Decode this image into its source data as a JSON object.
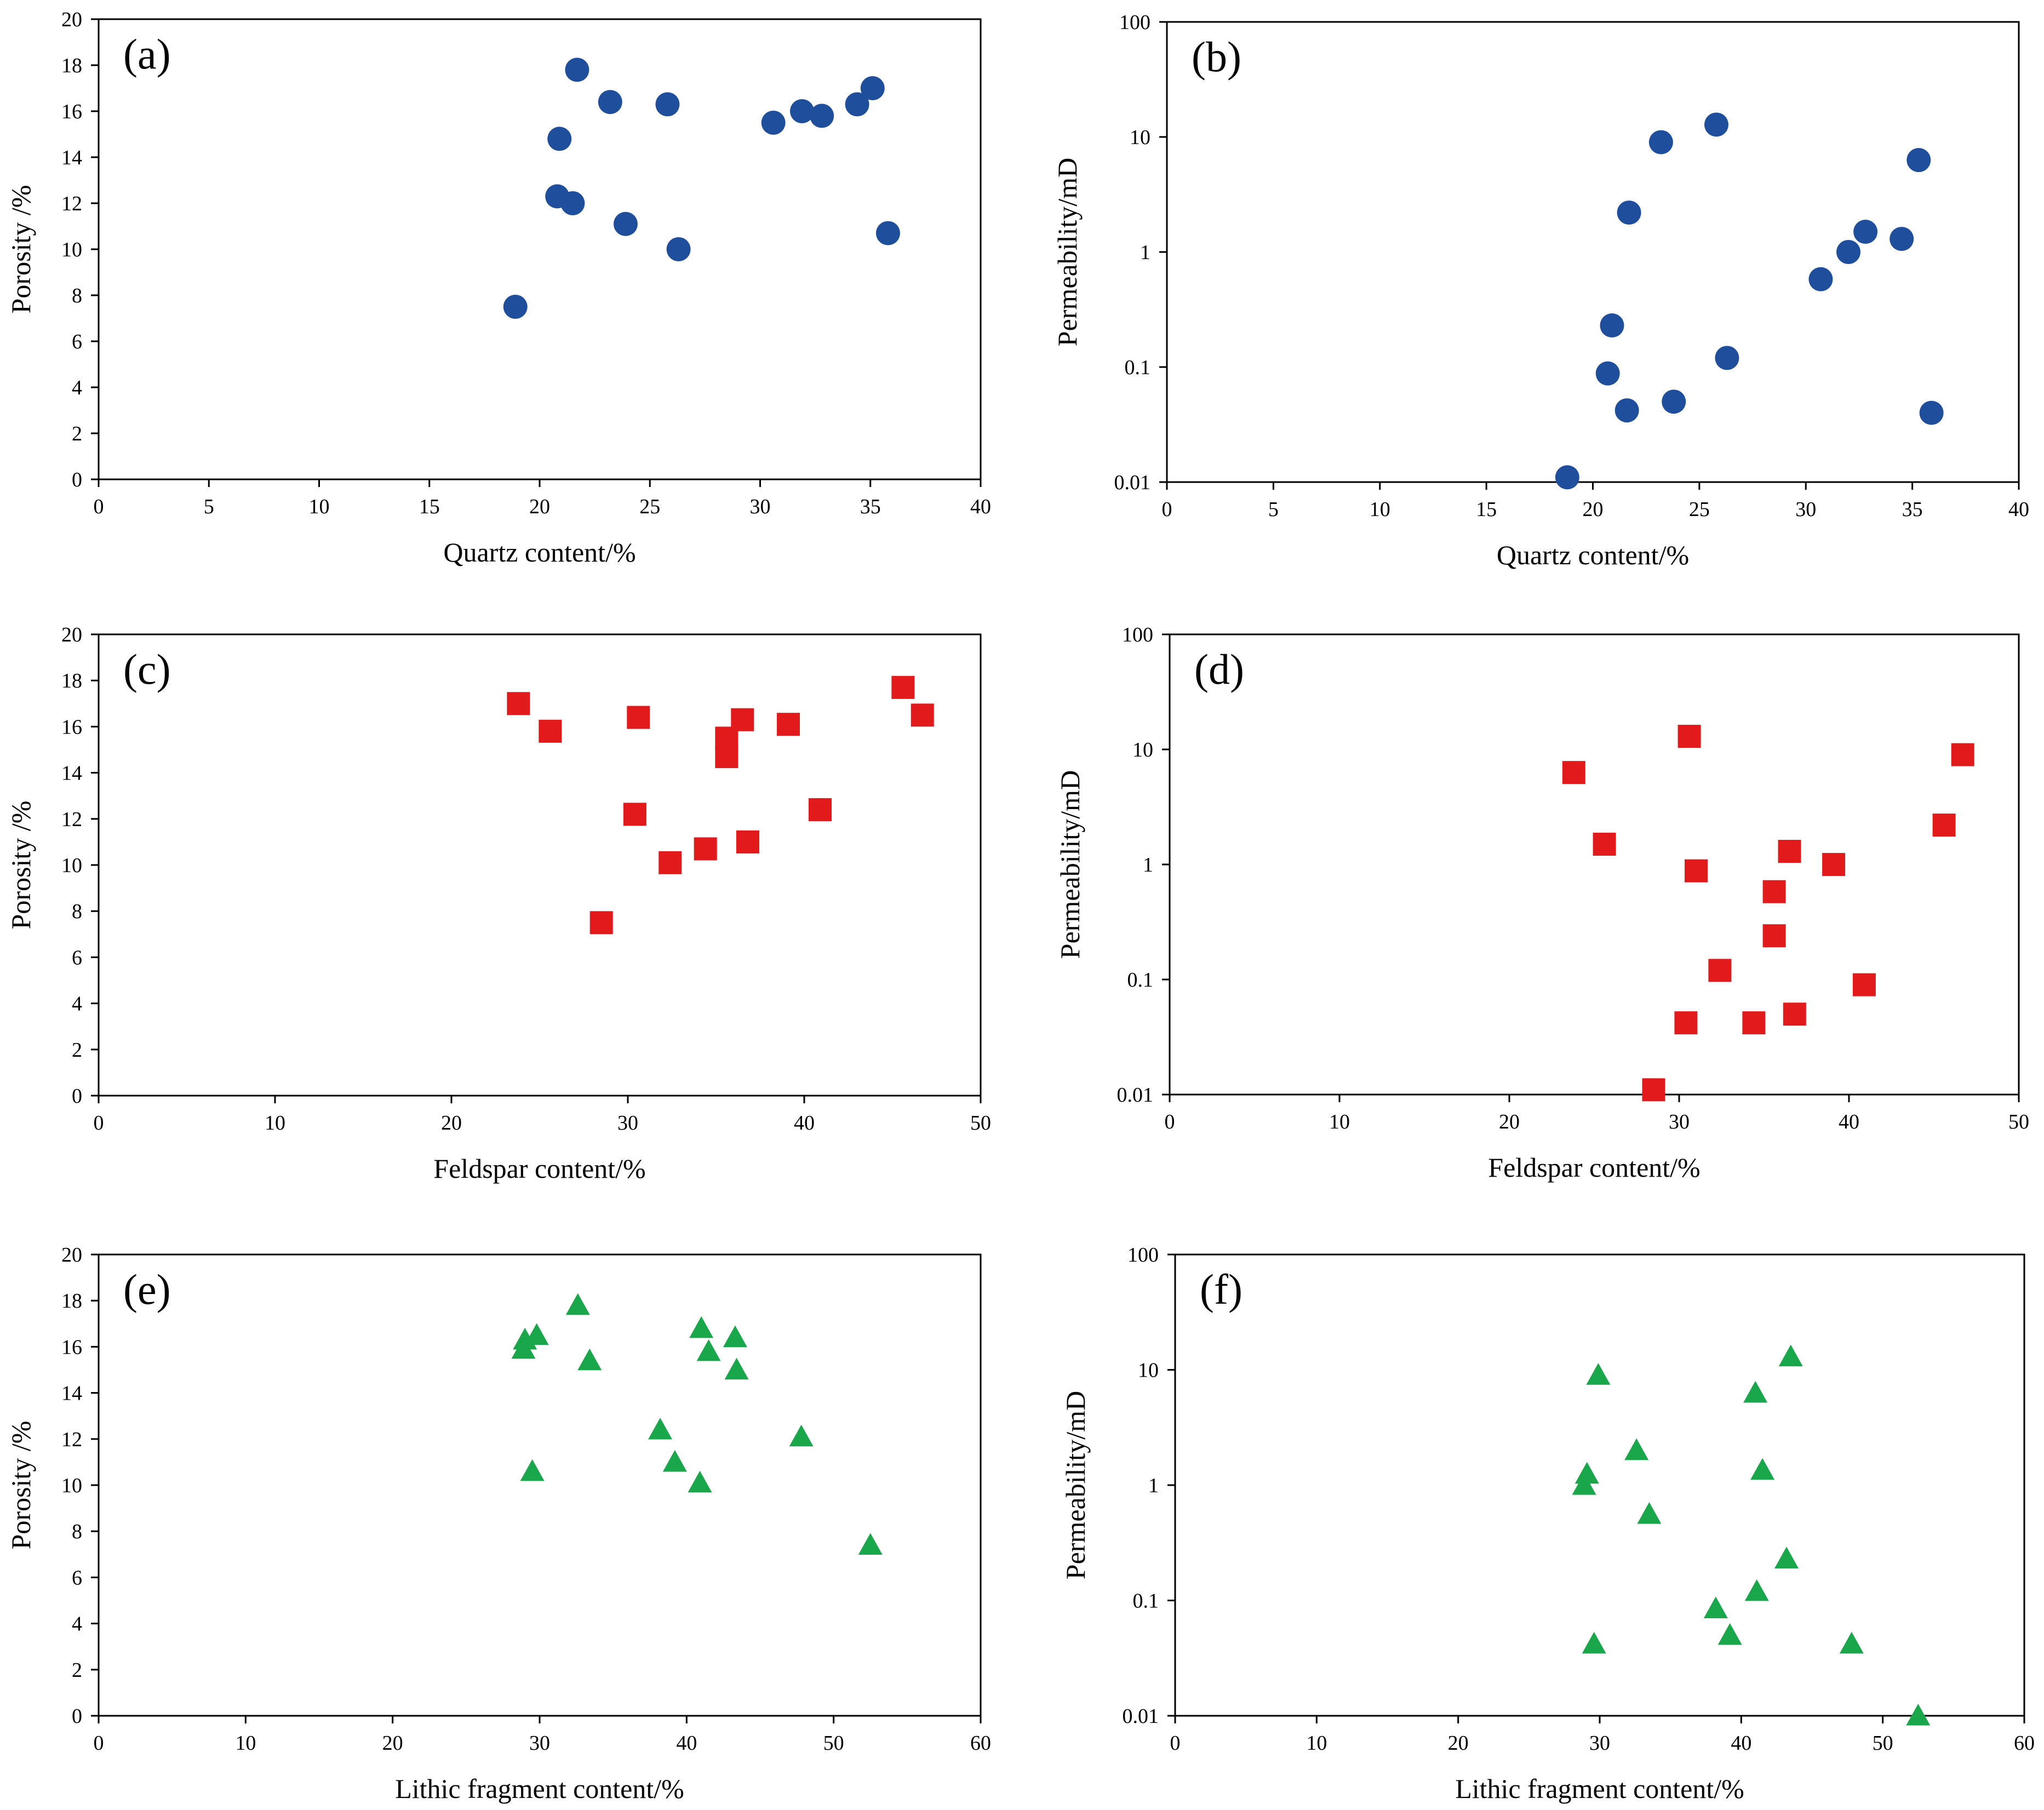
{
  "figure": {
    "colors": {
      "circle": "#1f4e9c",
      "square": "#e31a1c",
      "triangle": "#1aa64a",
      "frame": "#000000"
    }
  },
  "chart_data": [
    {
      "id": "a",
      "label": "(a)",
      "type": "scatter",
      "marker": "circle",
      "xlabel": "Quartz content/%",
      "ylabel": "Porosity /%",
      "xlim": [
        0,
        40
      ],
      "xticks": [
        0,
        5,
        10,
        15,
        20,
        25,
        30,
        35,
        40
      ],
      "ylim": [
        0,
        20
      ],
      "yticks": [
        0,
        2,
        4,
        6,
        8,
        10,
        12,
        14,
        16,
        18,
        20
      ],
      "yscale": "linear",
      "ytick_labels": [
        "0",
        "2",
        "4",
        "6",
        "8",
        "10",
        "12",
        "14",
        "16",
        "18",
        "20"
      ],
      "x": [
        18.9,
        20.8,
        20.9,
        21.5,
        21.7,
        23.2,
        23.9,
        25.8,
        26.3,
        30.6,
        31.9,
        32.8,
        34.4,
        35.1,
        35.8
      ],
      "y": [
        7.5,
        12.3,
        14.8,
        12.0,
        17.8,
        16.4,
        11.1,
        16.3,
        10.0,
        15.5,
        16.0,
        15.8,
        16.3,
        17.0,
        10.7
      ]
    },
    {
      "id": "b",
      "label": "(b)",
      "type": "scatter",
      "marker": "circle",
      "xlabel": "Quartz content/%",
      "ylabel": "Permeability/mD",
      "xlim": [
        0,
        40
      ],
      "xticks": [
        0,
        5,
        10,
        15,
        20,
        25,
        30,
        35,
        40
      ],
      "ylim": [
        0.01,
        100
      ],
      "yticks": [
        0.01,
        0.1,
        1,
        10,
        100
      ],
      "yscale": "log",
      "ytick_labels": [
        "0.01",
        "0.1",
        "1",
        "10",
        "100"
      ],
      "x": [
        18.8,
        20.7,
        20.9,
        21.6,
        21.7,
        23.2,
        23.8,
        25.8,
        26.3,
        30.7,
        32.0,
        32.8,
        34.5,
        35.3,
        35.9
      ],
      "y": [
        0.011,
        0.088,
        0.23,
        0.042,
        2.2,
        9.0,
        0.05,
        12.8,
        0.12,
        0.58,
        1.0,
        1.5,
        1.3,
        6.3,
        0.04
      ]
    },
    {
      "id": "c",
      "label": "(c)",
      "type": "scatter",
      "marker": "square",
      "xlabel": "Feldspar content/%",
      "ylabel": "Porosity /%",
      "xlim": [
        0,
        50
      ],
      "xticks": [
        0,
        10,
        20,
        30,
        40,
        50
      ],
      "ylim": [
        0,
        20
      ],
      "yticks": [
        0,
        2,
        4,
        6,
        8,
        10,
        12,
        14,
        16,
        18,
        20
      ],
      "yscale": "linear",
      "ytick_labels": [
        "0",
        "2",
        "4",
        "6",
        "8",
        "10",
        "12",
        "14",
        "16",
        "18",
        "20"
      ],
      "x": [
        23.8,
        25.6,
        28.5,
        30.4,
        30.6,
        32.4,
        34.4,
        35.6,
        35.6,
        36.5,
        36.8,
        39.1,
        40.9,
        45.6,
        46.7
      ],
      "y": [
        17.0,
        15.8,
        7.5,
        12.2,
        16.4,
        10.1,
        10.7,
        15.5,
        14.7,
        16.3,
        11.0,
        16.1,
        12.4,
        17.7,
        16.5
      ]
    },
    {
      "id": "d",
      "label": "(d)",
      "type": "scatter",
      "marker": "square",
      "xlabel": "Feldspar content/%",
      "ylabel": "Permeability/mD",
      "xlim": [
        0,
        50
      ],
      "xticks": [
        0,
        10,
        20,
        30,
        40,
        50
      ],
      "ylim": [
        0.01,
        100
      ],
      "yticks": [
        0.01,
        0.1,
        1,
        10,
        100
      ],
      "yscale": "log",
      "ytick_labels": [
        "0.01",
        "0.1",
        "1",
        "10",
        "100"
      ],
      "x": [
        23.8,
        25.6,
        28.5,
        30.4,
        30.6,
        31.0,
        32.4,
        34.4,
        35.6,
        35.6,
        36.5,
        36.8,
        39.1,
        40.9,
        45.6,
        46.7
      ],
      "y": [
        6.3,
        1.5,
        0.011,
        0.042,
        13.0,
        0.88,
        0.12,
        0.042,
        0.58,
        0.24,
        1.3,
        0.05,
        1.0,
        0.09,
        2.2,
        9.0
      ]
    },
    {
      "id": "e",
      "label": "(e)",
      "type": "scatter",
      "marker": "triangle",
      "xlabel": "Lithic fragment content/%",
      "ylabel": "Porosity /%",
      "xlim": [
        0,
        60
      ],
      "xticks": [
        0,
        10,
        20,
        30,
        40,
        50,
        60
      ],
      "ylim": [
        0,
        20
      ],
      "yticks": [
        0,
        2,
        4,
        6,
        8,
        10,
        12,
        14,
        16,
        18,
        20
      ],
      "yscale": "linear",
      "ytick_labels": [
        "0",
        "2",
        "4",
        "6",
        "8",
        "10",
        "12",
        "14",
        "16",
        "18",
        "20"
      ],
      "x": [
        28.9,
        29.0,
        29.5,
        29.8,
        32.6,
        33.4,
        38.2,
        39.2,
        40.9,
        41.0,
        41.5,
        43.3,
        43.4,
        47.8,
        52.5
      ],
      "y": [
        15.9,
        16.3,
        10.6,
        16.5,
        17.8,
        15.4,
        12.4,
        11.0,
        10.1,
        16.8,
        15.8,
        16.4,
        15.0,
        12.1,
        7.4
      ]
    },
    {
      "id": "f",
      "label": "(f)",
      "type": "scatter",
      "marker": "triangle",
      "xlabel": "Lithic fragment content/%",
      "ylabel": "Permeability/mD",
      "xlim": [
        0,
        60
      ],
      "xticks": [
        0,
        10,
        20,
        30,
        40,
        50,
        60
      ],
      "ylim": [
        0.01,
        100
      ],
      "yticks": [
        0.01,
        0.1,
        1,
        10,
        100
      ],
      "yscale": "log",
      "ytick_labels": [
        "0.01",
        "0.1",
        "1",
        "10",
        "100"
      ],
      "x": [
        28.9,
        29.1,
        29.6,
        29.9,
        32.6,
        33.5,
        38.2,
        39.2,
        41.0,
        41.1,
        41.5,
        43.2,
        43.5,
        47.8,
        52.5
      ],
      "y": [
        1.0,
        1.25,
        0.042,
        9.0,
        2.0,
        0.56,
        0.085,
        0.05,
        6.3,
        0.12,
        1.35,
        0.23,
        13.0,
        0.042,
        0.01
      ]
    }
  ]
}
